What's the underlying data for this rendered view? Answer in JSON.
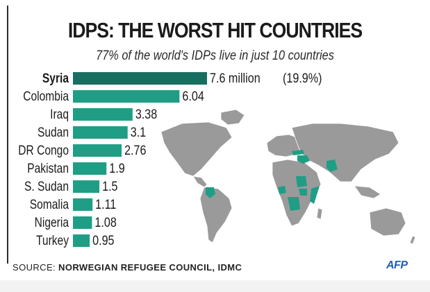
{
  "title": "IDPS: THE WORST HIT COUNTRIES",
  "subtitle": "77% of the world's IDPs live in just 10 countries",
  "source": {
    "prefix": "SOURCE:",
    "body": "NORWEGIAN REFUGEE COUNCIL, IDMC"
  },
  "logo": "AFP",
  "chart_data": {
    "type": "bar",
    "orientation": "horizontal",
    "title": "IDPS: THE WORST HIT COUNTRIES",
    "subtitle": "77% of the world's IDPs live in just 10 countries",
    "categories": [
      "Syria",
      "Colombia",
      "Iraq",
      "Sudan",
      "DR Congo",
      "Pakistan",
      "S. Sudan",
      "Somalia",
      "Nigeria",
      "Turkey"
    ],
    "values": [
      7.6,
      6.04,
      3.38,
      3.1,
      2.76,
      1.9,
      1.5,
      1.11,
      1.08,
      0.95
    ],
    "value_labels": [
      "7.6 million",
      "6.04",
      "3.38",
      "3.1",
      "2.76",
      "1.9",
      "1.5",
      "1.11",
      "1.08",
      "0.95"
    ],
    "annotation": "(19.9%)",
    "highlight": "Syria",
    "xlim": [
      0,
      7.6
    ],
    "grid": false,
    "colors": {
      "bar": "#1f9e85",
      "highlight": "#176e61",
      "map_land": "#9a9a9a",
      "map_highlight": "#1f9e85"
    },
    "background_map": "world-map-affected-countries-highlighted"
  }
}
